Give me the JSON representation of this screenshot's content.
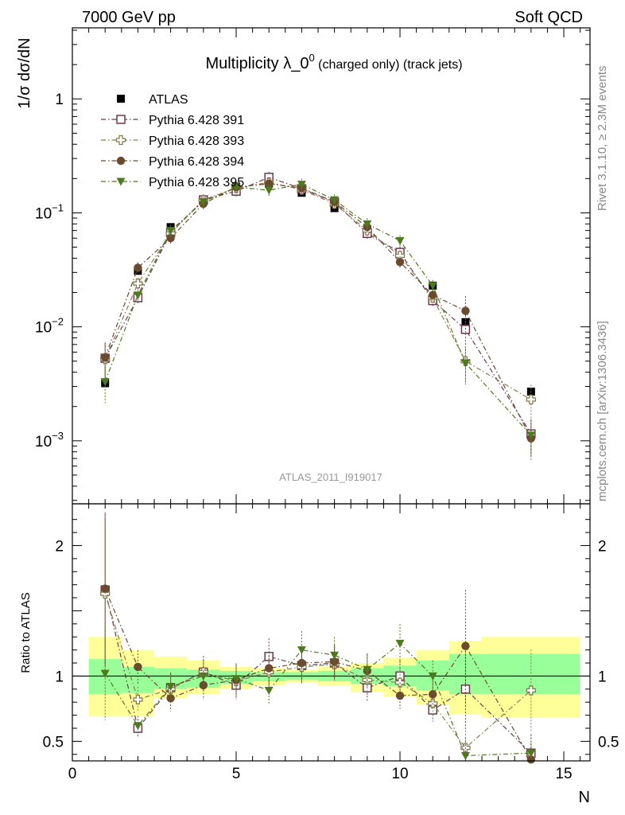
{
  "header": {
    "left": "7000 GeV pp",
    "right": "Soft QCD"
  },
  "side_labels": {
    "rivet": "Rivet 3.1.10, ≥ 2.3M events",
    "mcplots": "mcplots.cern.ch [arXiv:1306.3436]"
  },
  "chart_data": [
    {
      "type": "line",
      "title_main": "Multiplicity λ_0",
      "title_sup": "0",
      "title_tail": " (charged only) (track jets)",
      "ylabel": "1/σ dσ/dN",
      "analysis_id": "ATLAS_2011_I919017",
      "yscale": "log",
      "xlim": [
        0,
        15.8
      ],
      "ylim": [
        0.00028,
        4.2
      ],
      "y_ticks": [
        {
          "value": 0.001,
          "base": "10",
          "exp": "−3"
        },
        {
          "value": 0.01,
          "base": "10",
          "exp": "−2"
        },
        {
          "value": 0.1,
          "base": "10",
          "exp": "−1"
        },
        {
          "value": 1,
          "base": "1",
          "exp": ""
        }
      ],
      "legend_position": "top-left",
      "x": [
        1,
        2,
        3,
        4,
        5,
        6,
        7,
        8,
        9,
        10,
        11,
        12,
        14
      ],
      "series": [
        {
          "name": "ATLAS",
          "color": "#000000",
          "marker": "square-filled",
          "values": [
            0.0032,
            0.031,
            0.075,
            0.13,
            0.17,
            0.18,
            0.15,
            0.11,
            0.072,
            0.044,
            0.023,
            0.011,
            0.0027
          ]
        },
        {
          "name": "Pythia 6.428 391",
          "color": "#6b3a4e",
          "marker": "square-open",
          "values": [
            0.0053,
            0.018,
            0.067,
            0.13,
            0.155,
            0.205,
            0.163,
            0.124,
            0.066,
            0.045,
            0.017,
            0.0095,
            0.00115
          ]
        },
        {
          "name": "Pythia 6.428 393",
          "color": "#8a7a4e",
          "marker": "cross-open",
          "values": [
            0.0052,
            0.024,
            0.066,
            0.13,
            0.165,
            0.185,
            0.16,
            0.12,
            0.07,
            0.042,
            0.018,
            0.005,
            0.0023
          ]
        },
        {
          "name": "Pythia 6.428 394",
          "color": "#6b4a2e",
          "marker": "circle-filled",
          "values": [
            0.0054,
            0.033,
            0.06,
            0.12,
            0.168,
            0.18,
            0.165,
            0.125,
            0.075,
            0.037,
            0.019,
            0.0138,
            0.00105
          ]
        },
        {
          "name": "Pythia 6.428 395",
          "color": "#4e7a1e",
          "marker": "triangle-down-filled",
          "values": [
            0.0033,
            0.019,
            0.07,
            0.125,
            0.168,
            0.158,
            0.178,
            0.13,
            0.08,
            0.057,
            0.023,
            0.0048,
            0.00112
          ]
        }
      ]
    },
    {
      "type": "line",
      "ylabel": "Ratio to ATLAS",
      "xlabel": "N",
      "xlim": [
        0,
        15.8
      ],
      "ylim": [
        0.35,
        2.32
      ],
      "x_ticks": [
        0,
        5,
        10,
        15
      ],
      "y_ticks": [
        0.5,
        1,
        2
      ],
      "band_colors": {
        "inner": "#99ff99",
        "outer": "#ffff99"
      },
      "bands": [
        {
          "xlo": 0.5,
          "xhi": 1.5,
          "inner": [
            0.86,
            1.13
          ],
          "outer": [
            0.69,
            1.3
          ]
        },
        {
          "xlo": 1.5,
          "xhi": 2.5,
          "inner": [
            0.87,
            1.07
          ],
          "outer": [
            0.69,
            1.2
          ]
        },
        {
          "xlo": 2.5,
          "xhi": 3.5,
          "inner": [
            0.9,
            1.06
          ],
          "outer": [
            0.83,
            1.15
          ]
        },
        {
          "xlo": 3.5,
          "xhi": 4.5,
          "inner": [
            0.91,
            1.05
          ],
          "outer": [
            0.86,
            1.12
          ]
        },
        {
          "xlo": 4.5,
          "xhi": 5.5,
          "inner": [
            0.94,
            1.04
          ],
          "outer": [
            0.9,
            1.07
          ]
        },
        {
          "xlo": 5.5,
          "xhi": 6.5,
          "inner": [
            0.96,
            1.03
          ],
          "outer": [
            0.93,
            1.06
          ]
        },
        {
          "xlo": 6.5,
          "xhi": 7.5,
          "inner": [
            0.97,
            1.03
          ],
          "outer": [
            0.95,
            1.05
          ]
        },
        {
          "xlo": 7.5,
          "xhi": 8.5,
          "inner": [
            0.96,
            1.04
          ],
          "outer": [
            0.93,
            1.07
          ]
        },
        {
          "xlo": 8.5,
          "xhi": 9.5,
          "inner": [
            0.94,
            1.06
          ],
          "outer": [
            0.88,
            1.1
          ]
        },
        {
          "xlo": 9.5,
          "xhi": 10.5,
          "inner": [
            0.92,
            1.08
          ],
          "outer": [
            0.84,
            1.14
          ]
        },
        {
          "xlo": 10.5,
          "xhi": 11.5,
          "inner": [
            0.89,
            1.12
          ],
          "outer": [
            0.78,
            1.2
          ]
        },
        {
          "xlo": 11.5,
          "xhi": 12.5,
          "inner": [
            0.86,
            1.17
          ],
          "outer": [
            0.71,
            1.27
          ]
        },
        {
          "xlo": 12.5,
          "xhi": 15.5,
          "inner": [
            0.86,
            1.17
          ],
          "outer": [
            0.68,
            1.3
          ]
        }
      ],
      "x": [
        1,
        2,
        3,
        4,
        5,
        6,
        7,
        8,
        9,
        10,
        11,
        12,
        14
      ],
      "series": [
        {
          "name": "Pythia 6.428 391",
          "color": "#6b3a4e",
          "marker": "square-open",
          "values": [
            1.66,
            0.6,
            0.91,
            1.03,
            0.93,
            1.15,
            1.08,
            1.1,
            0.91,
            1.0,
            0.74,
            0.9,
            0.41
          ]
        },
        {
          "name": "Pythia 6.428 393",
          "color": "#8a7a4e",
          "marker": "cross-open",
          "values": [
            1.63,
            0.82,
            0.9,
            1.03,
            0.96,
            1.03,
            1.07,
            1.09,
            0.97,
            0.95,
            0.79,
            0.45,
            0.89
          ]
        },
        {
          "name": "Pythia 6.428 394",
          "color": "#6b4a2e",
          "marker": "circle-filled",
          "values": [
            1.67,
            1.07,
            0.83,
            0.93,
            0.97,
            1.06,
            1.1,
            1.11,
            1.04,
            0.85,
            0.86,
            1.23,
            0.36
          ]
        },
        {
          "name": "Pythia 6.428 395",
          "color": "#4e7a1e",
          "marker": "triangle-down-filled",
          "values": [
            1.02,
            0.62,
            0.92,
            1.0,
            0.98,
            0.89,
            1.2,
            1.16,
            1.05,
            1.25,
            1.0,
            0.39,
            0.41
          ]
        }
      ]
    }
  ]
}
